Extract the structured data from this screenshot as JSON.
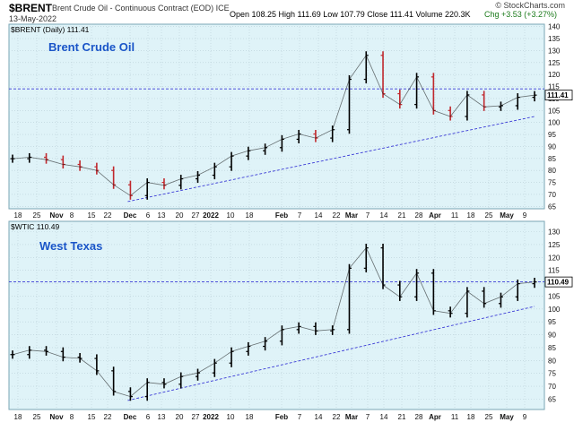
{
  "header": {
    "symbol": "$BRENT",
    "description": "Brent Crude Oil - Continuous Contract (EOD) ICE",
    "date": "13-May-2022",
    "ohlc": "Open 108.25 High 111.69 Low 107.79 Close 111.41 Volume 220.3K",
    "change": "Chg +3.53 (+3.27%)",
    "credit": "© StockCharts.com"
  },
  "colors": {
    "panel_bg": "#dff3f8",
    "title_blue": "#1a55c8",
    "reference_line": "#3b3bd6",
    "bar_up": "#000000",
    "bar_down": "#c0282d"
  },
  "x_axis_labels": [
    "18",
    "25",
    "Nov",
    "8",
    "15",
    "22",
    "Dec",
    "6",
    "13",
    "20",
    "27",
    "2022",
    "10",
    "18",
    "Feb",
    "7",
    "14",
    "22",
    "Mar",
    "7",
    "14",
    "21",
    "28",
    "Apr",
    "11",
    "18",
    "25",
    "May",
    "9"
  ],
  "x_axis_bold": [
    "Nov",
    "Dec",
    "2022",
    "Feb",
    "Mar",
    "Apr",
    "May"
  ],
  "chart_data": [
    {
      "type": "line",
      "panel_title": "Brent Crude Oil",
      "legend": "$BRENT (Daily) 111.41",
      "last_value": "111.41",
      "ylim": [
        64,
        141
      ],
      "y_ticks": [
        65,
        70,
        75,
        80,
        85,
        90,
        95,
        100,
        105,
        110,
        115,
        120,
        125,
        130,
        135,
        140
      ],
      "horizontal_reference": 114,
      "trendline": {
        "x_start": "Dec 1",
        "y_start": 67,
        "x_end": "May 13",
        "y_end": 102.5
      },
      "x": [
        "Oct 15",
        "Oct 22",
        "Oct 29",
        "Nov 5",
        "Nov 12",
        "Nov 19",
        "Nov 26",
        "Dec 3",
        "Dec 10",
        "Dec 17",
        "Dec 24",
        "Dec 31",
        "Jan 7",
        "Jan 14",
        "Jan 21",
        "Jan 28",
        "Feb 4",
        "Feb 11",
        "Feb 18",
        "Feb 25",
        "Mar 4",
        "Mar 8",
        "Mar 11",
        "Mar 18",
        "Mar 25",
        "Apr 1",
        "Apr 8",
        "Apr 15",
        "Apr 22",
        "Apr 29",
        "May 6",
        "May 13"
      ],
      "values": [
        84.9,
        85.5,
        84.5,
        82.5,
        81.5,
        80.0,
        74.0,
        69.5,
        75.0,
        73.8,
        76.5,
        78.0,
        81.5,
        86.0,
        88.2,
        89.5,
        93.0,
        95.2,
        93.5,
        97.0,
        118.0,
        128.0,
        112.0,
        107.5,
        119.0,
        105.0,
        102.5,
        111.5,
        106.5,
        107.0,
        110.5,
        111.41
      ]
    },
    {
      "type": "line",
      "panel_title": "West Texas",
      "legend": "$WTIC 110.49",
      "last_value": "110.49",
      "ylim": [
        61,
        134
      ],
      "y_ticks": [
        65,
        70,
        75,
        80,
        85,
        90,
        95,
        100,
        105,
        110,
        115,
        120,
        125,
        130
      ],
      "horizontal_reference": 110.5,
      "trendline": {
        "x_start": "Dec 1",
        "y_start": 64.5,
        "x_end": "May 13",
        "y_end": 101
      },
      "x": [
        "Oct 15",
        "Oct 22",
        "Oct 29",
        "Nov 5",
        "Nov 12",
        "Nov 19",
        "Nov 26",
        "Dec 3",
        "Dec 10",
        "Dec 17",
        "Dec 24",
        "Dec 31",
        "Jan 7",
        "Jan 14",
        "Jan 21",
        "Jan 28",
        "Feb 4",
        "Feb 11",
        "Feb 18",
        "Feb 25",
        "Mar 4",
        "Mar 8",
        "Mar 11",
        "Mar 18",
        "Mar 25",
        "Apr 1",
        "Apr 8",
        "Apr 15",
        "Apr 22",
        "Apr 29",
        "May 6",
        "May 13"
      ],
      "values": [
        82.3,
        84.0,
        83.5,
        81.3,
        80.8,
        76.0,
        68.0,
        66.0,
        71.5,
        70.8,
        73.8,
        75.2,
        79.0,
        83.5,
        85.5,
        87.5,
        92.0,
        93.2,
        91.5,
        92.0,
        115.8,
        123.7,
        109.3,
        104.7,
        113.9,
        99.3,
        98.3,
        106.9,
        102.1,
        104.7,
        109.8,
        110.49
      ]
    }
  ]
}
